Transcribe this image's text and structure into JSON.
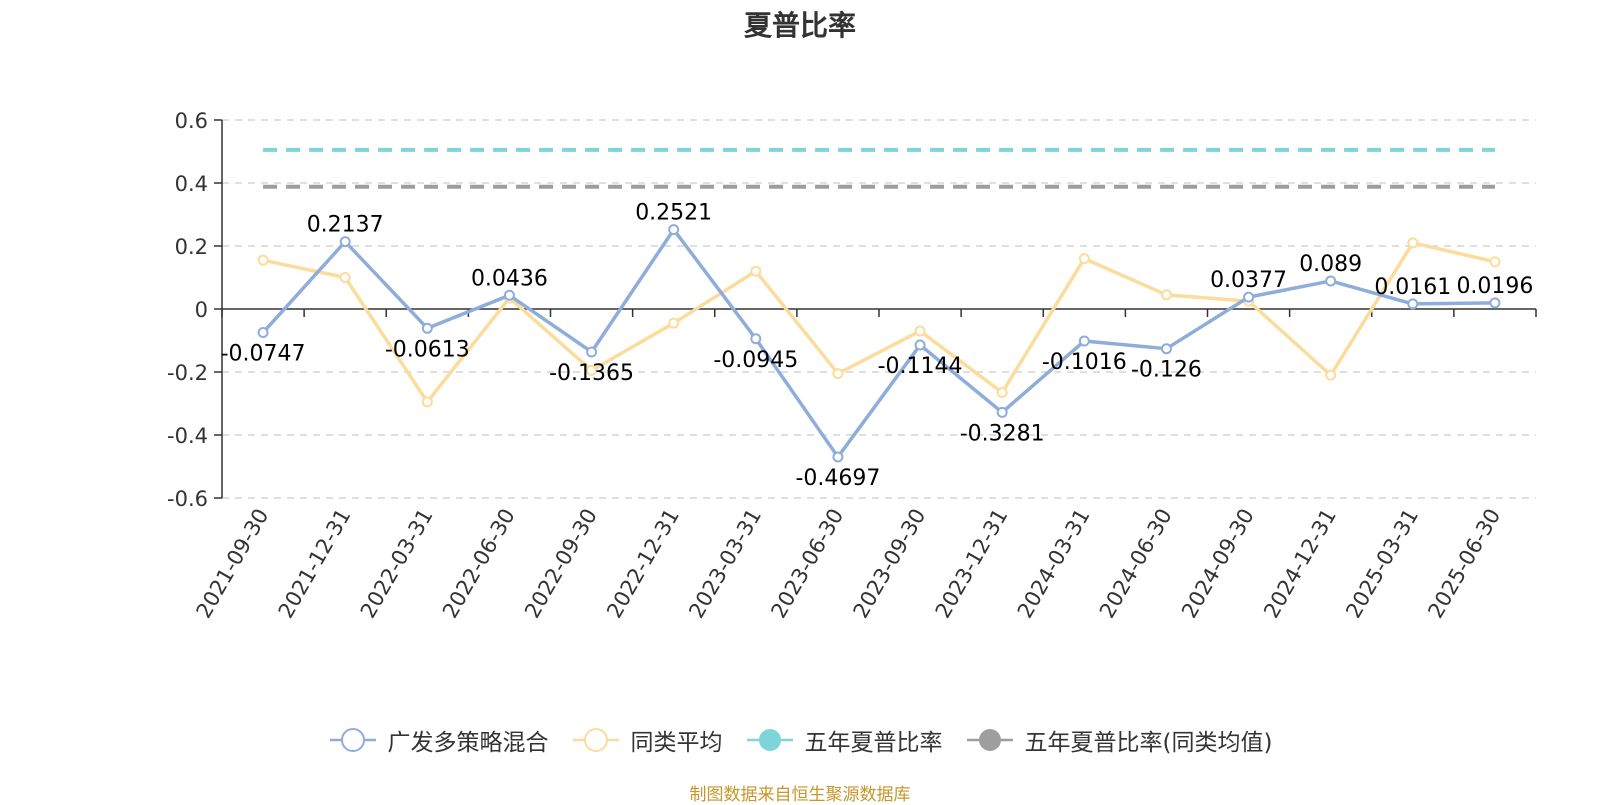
{
  "chart_data": {
    "type": "line",
    "title": "夏普比率",
    "categories": [
      "2021-09-30",
      "2021-12-31",
      "2022-03-31",
      "2022-06-30",
      "2022-09-30",
      "2022-12-31",
      "2023-03-31",
      "2023-06-30",
      "2023-09-30",
      "2023-12-31",
      "2024-03-31",
      "2024-06-30",
      "2024-09-30",
      "2024-12-31",
      "2025-03-31",
      "2025-06-30"
    ],
    "series": [
      {
        "name": "广发多策略混合",
        "color": "#8eaddb",
        "values": [
          -0.0747,
          0.2137,
          -0.0613,
          0.0436,
          -0.1365,
          0.2521,
          -0.0945,
          -0.4697,
          -0.1144,
          -0.3281,
          -0.1016,
          -0.126,
          0.0377,
          0.089,
          0.0161,
          0.0196
        ],
        "labels": [
          "-0.0747",
          "0.2137",
          "-0.0613",
          "0.0436",
          "-0.1365",
          "0.2521",
          "-0.0945",
          "-0.4697",
          "-0.1144",
          "-0.3281",
          "-0.1016",
          "-0.126",
          "0.0377",
          "0.089",
          "0.0161",
          "0.0196"
        ]
      },
      {
        "name": "同类平均",
        "color": "#fbdc9c",
        "values": [
          0.155,
          0.1,
          -0.295,
          0.035,
          -0.195,
          -0.045,
          0.12,
          -0.205,
          -0.07,
          -0.265,
          0.16,
          0.045,
          0.025,
          -0.21,
          0.21,
          0.15
        ]
      },
      {
        "name": "五年夏普比率",
        "color": "#7fd4d9",
        "constant": 0.505
      },
      {
        "name": "五年夏普比率(同类均值)",
        "color": "#9e9e9e",
        "constant": 0.388
      }
    ],
    "yticks": [
      "0.6",
      "0.4",
      "0.2",
      "0",
      "-0.2",
      "-0.4",
      "-0.6"
    ],
    "ylim": [
      -0.6,
      0.6
    ],
    "grid": true,
    "legend_position": "bottom"
  },
  "source_note": "制图数据来自恒生聚源数据库"
}
